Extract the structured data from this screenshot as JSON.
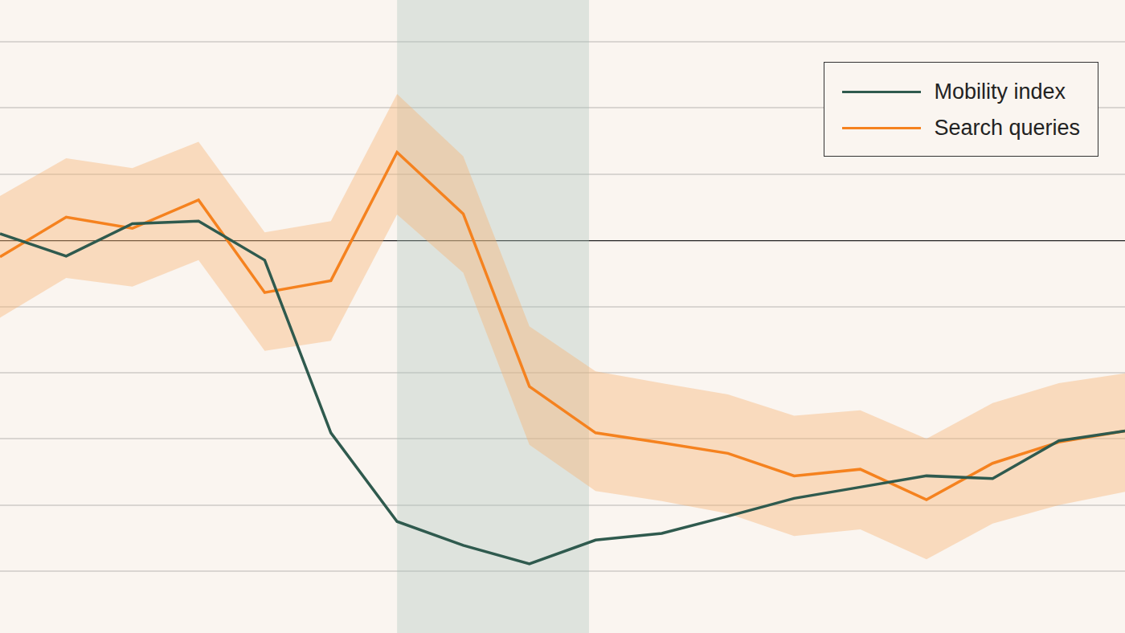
{
  "chart_data": {
    "type": "line",
    "x": [
      0,
      1,
      2,
      3,
      4,
      5,
      6,
      7,
      8,
      9,
      10,
      11,
      12,
      13,
      14,
      15,
      16,
      17
    ],
    "xlim": [
      0,
      17
    ],
    "ylim": [
      -50,
      30
    ],
    "yticks": [
      -50,
      -40,
      -30,
      -20,
      -10,
      0,
      10,
      20,
      30
    ],
    "baseline": 0,
    "shaded_x": [
      6,
      8.9
    ],
    "grid": true,
    "tick_labels": false,
    "legend": "upper right",
    "series": [
      {
        "name": "Mobility index",
        "color": "#2f5a4e",
        "values": [
          1.0,
          -2.4,
          2.5,
          2.9,
          -3.0,
          -29.1,
          -42.5,
          -46.1,
          -48.9,
          -45.3,
          -44.3,
          -41.7,
          -39.0,
          -37.3,
          -35.6,
          -36.0,
          -30.3,
          -28.8
        ]
      },
      {
        "name": "Search queries",
        "color": "#f5821f",
        "values": [
          -2.5,
          3.5,
          1.8,
          6.1,
          -7.9,
          -6.1,
          13.3,
          4.0,
          -22.1,
          -29.1,
          -30.6,
          -32.2,
          -35.6,
          -34.6,
          -39.2,
          -33.7,
          -30.5,
          -28.8
        ],
        "band": {
          "upper": [
            6.7,
            12.4,
            10.9,
            14.9,
            1.2,
            2.9,
            22.1,
            12.7,
            -13.0,
            -19.8,
            -21.6,
            -23.3,
            -26.5,
            -25.7,
            -30.0,
            -24.6,
            -21.6,
            -20.1
          ],
          "lower": [
            -11.7,
            -5.7,
            -7.0,
            -3.0,
            -16.7,
            -15.2,
            3.9,
            -4.9,
            -30.9,
            -37.9,
            -39.4,
            -41.3,
            -44.7,
            -43.7,
            -48.2,
            -42.8,
            -40.0,
            -38.0
          ]
        }
      }
    ]
  }
}
